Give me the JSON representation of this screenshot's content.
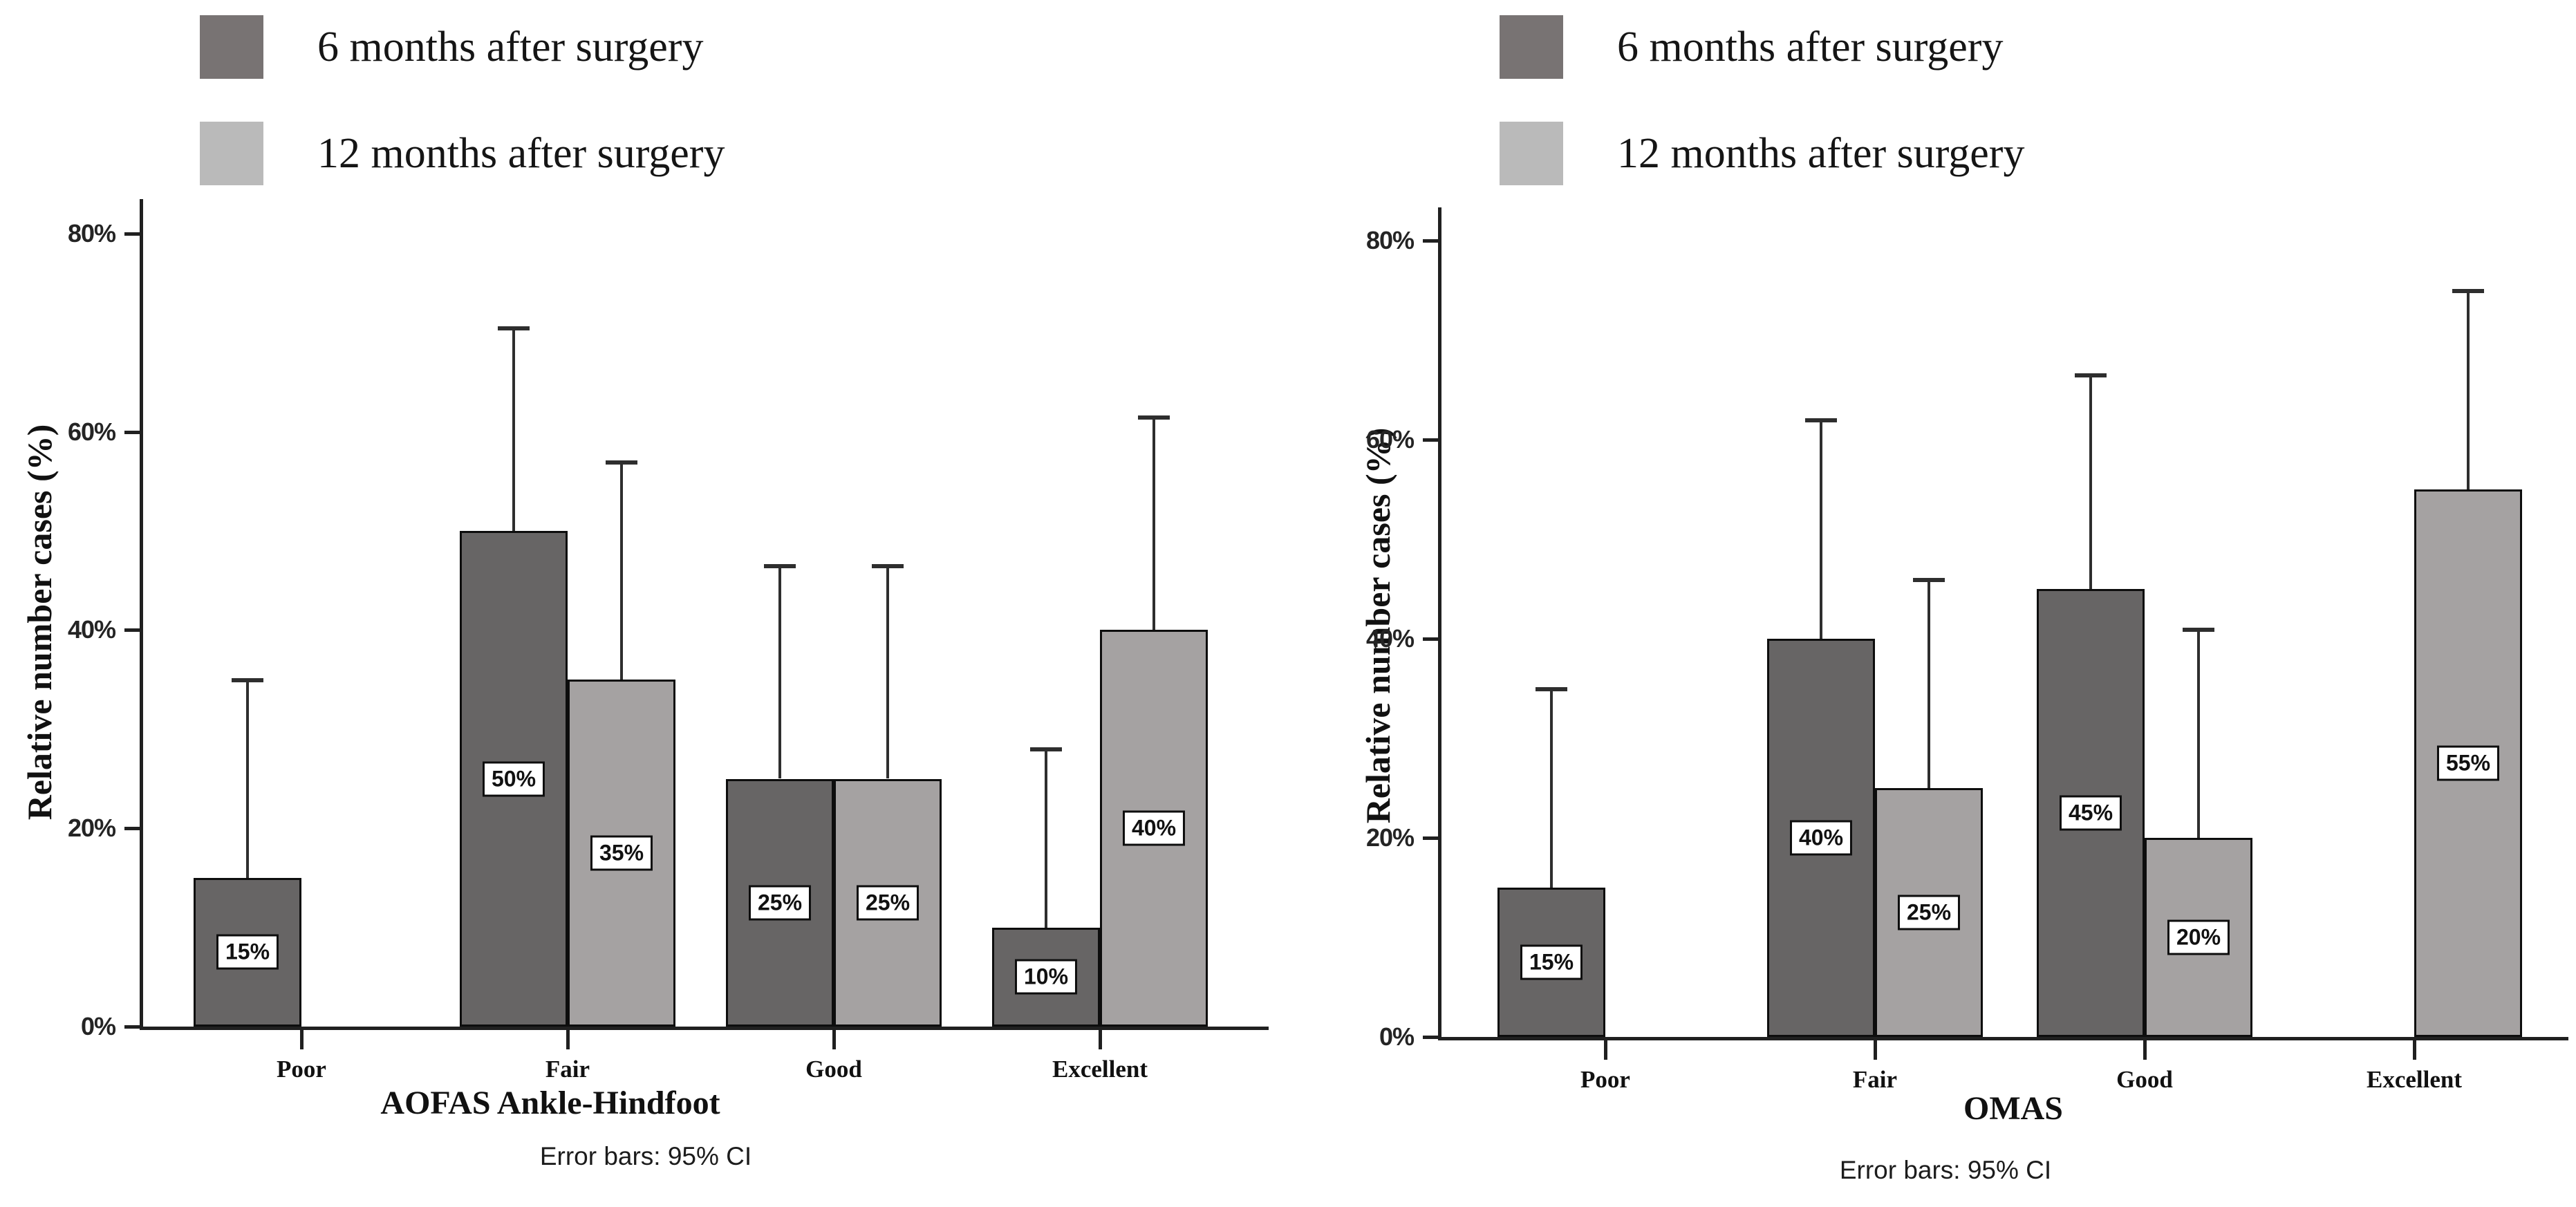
{
  "page": {
    "background": "#ffffff"
  },
  "chart_data": [
    {
      "type": "bar",
      "title": "AOFAS Ankle-Hindfoot",
      "caption": "Error bars: 95% CI",
      "ylabel": "Relative number cases (%)",
      "categories": [
        "Poor",
        "Fair",
        "Good",
        "Excellent"
      ],
      "y_tick_labels": [
        "0%",
        "20%",
        "40%",
        "60%",
        "80%"
      ],
      "y_tick_values": [
        0,
        20,
        40,
        60,
        80
      ],
      "ylim": [
        0,
        80
      ],
      "grid": false,
      "legend_position": "top-left",
      "error_bars": "95% CI, upper whisker only",
      "legend": [
        {
          "label": "6 months after surgery",
          "swatch_color": "#787373"
        },
        {
          "label": "12 months after surgery",
          "swatch_color": "#bababa"
        }
      ],
      "series": [
        {
          "name": "6 months after surgery",
          "color": "#676565",
          "values": [
            15,
            50,
            25,
            10
          ],
          "ci_upper": [
            35,
            70.5,
            46.5,
            28
          ],
          "bar_labels": [
            "15%",
            "50%",
            "25%",
            "10%"
          ]
        },
        {
          "name": "12 months after surgery",
          "color": "#a5a2a2",
          "values": [
            0,
            35,
            25,
            40
          ],
          "ci_upper": [
            null,
            57,
            46.5,
            61.5
          ],
          "bar_labels": [
            null,
            "35%",
            "25%",
            "40%"
          ]
        }
      ]
    },
    {
      "type": "bar",
      "title": "OMAS",
      "caption": "Error bars: 95% CI",
      "ylabel": "Relative number cases (%)",
      "categories": [
        "Poor",
        "Fair",
        "Good",
        "Excellent"
      ],
      "y_tick_labels": [
        "0%",
        "20%",
        "40%",
        "60%",
        "80%"
      ],
      "y_tick_values": [
        0,
        20,
        40,
        60,
        80
      ],
      "ylim": [
        0,
        80
      ],
      "grid": false,
      "legend_position": "top-left",
      "error_bars": "95% CI, upper whisker only",
      "legend": [
        {
          "label": "6 months after surgery",
          "swatch_color": "#787373"
        },
        {
          "label": "12 months after surgery",
          "swatch_color": "#bababa"
        }
      ],
      "series": [
        {
          "name": "6 months after surgery",
          "color": "#676565",
          "values": [
            15,
            40,
            45,
            0
          ],
          "ci_upper": [
            35,
            62,
            66.5,
            null
          ],
          "bar_labels": [
            "15%",
            "40%",
            "45%",
            null
          ]
        },
        {
          "name": "12 months after surgery",
          "color": "#a5a2a2",
          "values": [
            0,
            25,
            20,
            55
          ],
          "ci_upper": [
            null,
            46,
            41,
            75
          ],
          "bar_labels": [
            null,
            "25%",
            "20%",
            "55%"
          ]
        }
      ]
    }
  ]
}
